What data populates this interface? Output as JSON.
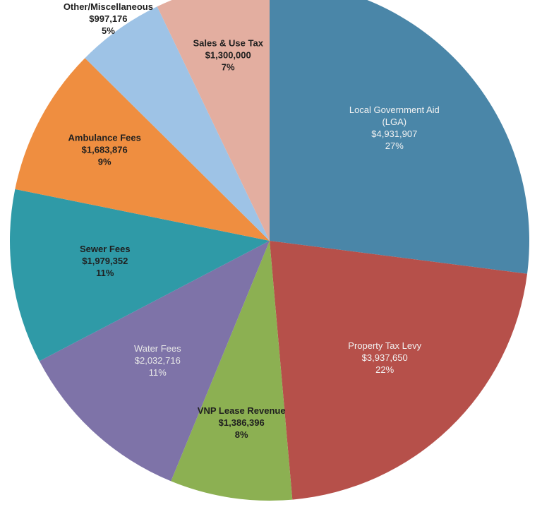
{
  "chart_data": {
    "type": "pie",
    "title": "",
    "start_angle_deg": 0,
    "direction": "clockwise",
    "slices": [
      {
        "name": "Local Government Aid (LGA)",
        "label_lines": [
          "Local Government Aid",
          "(LGA)"
        ],
        "value_label": "$4,931,907",
        "percent_label": "27%",
        "value": 4931907,
        "color": "#4a86a8",
        "label_color": "#f2f2f2"
      },
      {
        "name": "Property Tax Levy",
        "label_lines": [
          "Property Tax Levy"
        ],
        "value_label": "$3,937,650",
        "percent_label": "22%",
        "value": 3937650,
        "color": "#b6504a",
        "label_color": "#f2f2f2"
      },
      {
        "name": "VNP Lease Revenue",
        "label_lines": [
          "VNP Lease Revenue"
        ],
        "value_label": "$1,386,396",
        "percent_label": "8%",
        "value": 1386396,
        "color": "#8cb052",
        "label_color": "#1f1f1f"
      },
      {
        "name": "Water Fees",
        "label_lines": [
          "Water Fees"
        ],
        "value_label": "$2,032,716",
        "percent_label": "11%",
        "value": 2032716,
        "color": "#7e73a8",
        "label_color": "#e6e6e6"
      },
      {
        "name": "Sewer Fees",
        "label_lines": [
          "Sewer Fees"
        ],
        "value_label": "$1,979,352",
        "percent_label": "11%",
        "value": 1979352,
        "color": "#2f9aa7",
        "label_color": "#1f1f1f"
      },
      {
        "name": "Ambulance Fees",
        "label_lines": [
          "Ambulance Fees"
        ],
        "value_label": "$1,683,876",
        "percent_label": "9%",
        "value": 1683876,
        "color": "#ef8e40",
        "label_color": "#1f1f1f"
      },
      {
        "name": "Other/Miscellaneous",
        "label_lines": [
          "Other/Miscellaneous"
        ],
        "value_label": "$997,176",
        "percent_label": "5%",
        "value": 997176,
        "color": "#9ec3e6",
        "label_color": "#1f1f1f",
        "label_outside": true
      },
      {
        "name": "Sales & Use Tax",
        "label_lines": [
          "Sales & Use Tax"
        ],
        "value_label": "$1,300,000",
        "percent_label": "7%",
        "value": 1300000,
        "color": "#e3aea0",
        "label_color": "#1f1f1f"
      }
    ]
  }
}
